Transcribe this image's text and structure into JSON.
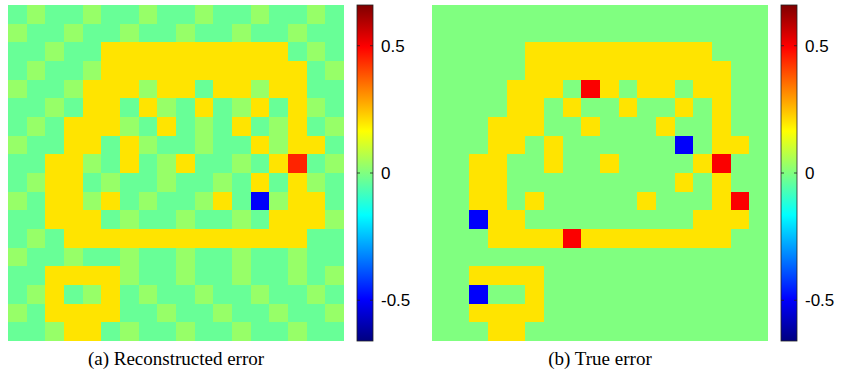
{
  "chart_data": [
    {
      "type": "heatmap",
      "title": "(a) Reconstructed error",
      "tick_labels": false,
      "clim": [
        -0.66,
        0.66
      ],
      "cticks": [
        0.5,
        0,
        -0.5
      ],
      "cells": [
        [
          -0.03,
          0.03,
          -0.03,
          -0.03,
          0.03,
          -0.03,
          -0.03,
          0.03,
          -0.03,
          -0.03,
          0.03,
          -0.03,
          -0.03,
          0.03,
          -0.03,
          -0.03,
          0.03,
          -0.03
        ],
        [
          0.03,
          -0.03,
          -0.03,
          0.03,
          -0.03,
          -0.03,
          0.03,
          -0.03,
          -0.03,
          0.03,
          -0.03,
          -0.03,
          0.03,
          -0.03,
          -0.03,
          0.03,
          -0.03,
          -0.03
        ],
        [
          -0.03,
          -0.03,
          0.03,
          -0.03,
          -0.03,
          0.2,
          0.2,
          0.2,
          0.2,
          0.2,
          0.2,
          0.2,
          0.2,
          0.2,
          0.2,
          -0.03,
          0.03,
          -0.03
        ],
        [
          -0.03,
          0.03,
          -0.03,
          -0.03,
          0.03,
          0.2,
          0.2,
          0.2,
          0.2,
          0.2,
          0.2,
          0.2,
          0.2,
          0.2,
          0.2,
          0.2,
          -0.03,
          0.03
        ],
        [
          0.03,
          -0.03,
          -0.03,
          0.03,
          0.2,
          0.2,
          0.2,
          0.03,
          0.2,
          0.2,
          -0.03,
          0.2,
          0.2,
          0.03,
          0.2,
          0.2,
          -0.03,
          -0.03
        ],
        [
          -0.03,
          -0.03,
          0.03,
          -0.03,
          0.2,
          0.2,
          -0.03,
          0.2,
          0.03,
          -0.03,
          0.2,
          -0.03,
          0.03,
          0.2,
          -0.03,
          0.2,
          0.03,
          -0.03
        ],
        [
          -0.03,
          0.03,
          -0.03,
          0.2,
          0.2,
          0.2,
          0.03,
          -0.03,
          0.2,
          -0.03,
          0.03,
          -0.03,
          0.2,
          -0.03,
          0.03,
          0.2,
          -0.03,
          0.03
        ],
        [
          0.03,
          -0.03,
          -0.03,
          0.2,
          0.2,
          -0.03,
          0.2,
          0.03,
          -0.03,
          -0.03,
          0.03,
          -0.03,
          -0.03,
          0.2,
          0.03,
          0.2,
          0.2,
          -0.03
        ],
        [
          -0.03,
          -0.03,
          0.2,
          0.2,
          0.03,
          -0.03,
          0.2,
          -0.03,
          0.03,
          0.2,
          -0.03,
          -0.03,
          0.03,
          -0.03,
          0.2,
          0.45,
          -0.03,
          0.03
        ],
        [
          -0.03,
          0.03,
          0.2,
          0.2,
          -0.03,
          0.03,
          -0.03,
          -0.03,
          0.03,
          -0.03,
          -0.03,
          0.03,
          -0.03,
          0.2,
          -0.03,
          0.2,
          0.03,
          -0.03
        ],
        [
          0.03,
          -0.03,
          0.2,
          0.2,
          0.03,
          0.2,
          -0.03,
          0.03,
          -0.03,
          -0.03,
          0.03,
          0.2,
          -0.03,
          -0.5,
          0.03,
          0.2,
          0.2,
          -0.03
        ],
        [
          -0.03,
          -0.03,
          0.2,
          0.2,
          0.2,
          -0.03,
          0.03,
          -0.03,
          -0.03,
          0.03,
          -0.03,
          -0.03,
          0.03,
          -0.03,
          0.2,
          0.2,
          0.2,
          0.03
        ],
        [
          -0.03,
          0.03,
          -0.03,
          0.2,
          0.2,
          0.2,
          0.2,
          0.2,
          0.2,
          0.2,
          0.2,
          0.2,
          0.2,
          0.2,
          0.2,
          0.2,
          -0.03,
          -0.03
        ],
        [
          0.03,
          -0.03,
          -0.03,
          0.03,
          -0.03,
          -0.03,
          0.03,
          -0.03,
          -0.03,
          0.03,
          -0.03,
          -0.03,
          0.03,
          -0.03,
          -0.03,
          0.03,
          -0.03,
          -0.03
        ],
        [
          -0.03,
          -0.03,
          0.2,
          0.2,
          0.2,
          0.2,
          0.03,
          -0.03,
          -0.03,
          0.03,
          -0.03,
          -0.03,
          0.03,
          -0.03,
          -0.03,
          0.03,
          -0.03,
          0.03
        ],
        [
          -0.03,
          0.03,
          0.2,
          -0.03,
          0.03,
          0.2,
          -0.03,
          0.03,
          -0.03,
          -0.03,
          0.03,
          -0.03,
          -0.03,
          0.03,
          -0.03,
          -0.03,
          0.03,
          -0.03
        ],
        [
          0.03,
          -0.03,
          0.2,
          0.2,
          0.2,
          0.2,
          -0.03,
          -0.03,
          0.03,
          -0.03,
          -0.03,
          0.03,
          -0.03,
          -0.03,
          0.03,
          -0.03,
          -0.03,
          0.03
        ],
        [
          -0.03,
          -0.03,
          0.03,
          0.2,
          0.2,
          -0.03,
          0.03,
          -0.03,
          -0.03,
          0.03,
          -0.03,
          -0.03,
          0.03,
          -0.03,
          -0.03,
          0.03,
          -0.03,
          -0.03
        ]
      ]
    },
    {
      "type": "heatmap",
      "title": "(b) True error",
      "tick_labels": false,
      "clim": [
        -0.66,
        0.66
      ],
      "cticks": [
        0.5,
        0,
        -0.5
      ],
      "cells": [
        [
          0,
          0,
          0,
          0,
          0,
          0,
          0,
          0,
          0,
          0,
          0,
          0,
          0,
          0,
          0,
          0,
          0,
          0
        ],
        [
          0,
          0,
          0,
          0,
          0,
          0,
          0,
          0,
          0,
          0,
          0,
          0,
          0,
          0,
          0,
          0,
          0,
          0
        ],
        [
          0,
          0,
          0,
          0,
          0,
          0.2,
          0.2,
          0.2,
          0.2,
          0.2,
          0.2,
          0.2,
          0.2,
          0.2,
          0.2,
          0,
          0,
          0
        ],
        [
          0,
          0,
          0,
          0,
          0,
          0.2,
          0.2,
          0.2,
          0.2,
          0.2,
          0.2,
          0.2,
          0.2,
          0.2,
          0.2,
          0.2,
          0,
          0
        ],
        [
          0,
          0,
          0,
          0,
          0.2,
          0.2,
          0.2,
          0,
          0.5,
          0.2,
          0,
          0.2,
          0.2,
          0,
          0.2,
          0.2,
          0,
          0
        ],
        [
          0,
          0,
          0,
          0,
          0.2,
          0.2,
          0,
          0.2,
          0,
          0,
          0.2,
          0,
          0,
          0.2,
          0,
          0.2,
          0,
          0
        ],
        [
          0,
          0,
          0,
          0.2,
          0.2,
          0.2,
          0,
          0,
          0.2,
          0,
          0,
          0,
          0.2,
          0,
          0,
          0.2,
          0,
          0
        ],
        [
          0,
          0,
          0,
          0.2,
          0.2,
          0,
          0.2,
          0,
          0,
          0,
          0,
          0,
          0,
          -0.5,
          0,
          0.2,
          0.2,
          0
        ],
        [
          0,
          0,
          0.2,
          0.2,
          0,
          0,
          0.2,
          0,
          0,
          0.2,
          0,
          0,
          0,
          0,
          0.2,
          0.5,
          0,
          0
        ],
        [
          0,
          0,
          0.2,
          0.2,
          0,
          0,
          0,
          0,
          0,
          0,
          0,
          0,
          0,
          0.2,
          0,
          0.2,
          0,
          0
        ],
        [
          0,
          0,
          0.2,
          0.2,
          0,
          0.2,
          0,
          0,
          0,
          0,
          0,
          0.2,
          0,
          0,
          0,
          0.2,
          0.5,
          0
        ],
        [
          0,
          0,
          -0.5,
          0.2,
          0.2,
          0,
          0,
          0,
          0,
          0,
          0,
          0,
          0,
          0,
          0.2,
          0.2,
          0.2,
          0
        ],
        [
          0,
          0,
          0,
          0.2,
          0.2,
          0.2,
          0.2,
          0.5,
          0.2,
          0.2,
          0.2,
          0.2,
          0.2,
          0.2,
          0.2,
          0.2,
          0,
          0
        ],
        [
          0,
          0,
          0,
          0,
          0,
          0,
          0,
          0,
          0,
          0,
          0,
          0,
          0,
          0,
          0,
          0,
          0,
          0
        ],
        [
          0,
          0,
          0.2,
          0.2,
          0.2,
          0.2,
          0,
          0,
          0,
          0,
          0,
          0,
          0,
          0,
          0,
          0,
          0,
          0
        ],
        [
          0,
          0,
          -0.5,
          0,
          0,
          0.2,
          0,
          0,
          0,
          0,
          0,
          0,
          0,
          0,
          0,
          0,
          0,
          0
        ],
        [
          0,
          0,
          0.2,
          0.2,
          0.2,
          0.2,
          0,
          0,
          0,
          0,
          0,
          0,
          0,
          0,
          0,
          0,
          0,
          0
        ],
        [
          0,
          0,
          0,
          0.2,
          0.2,
          0,
          0,
          0,
          0,
          0,
          0,
          0,
          0,
          0,
          0,
          0,
          0,
          0
        ]
      ]
    }
  ]
}
